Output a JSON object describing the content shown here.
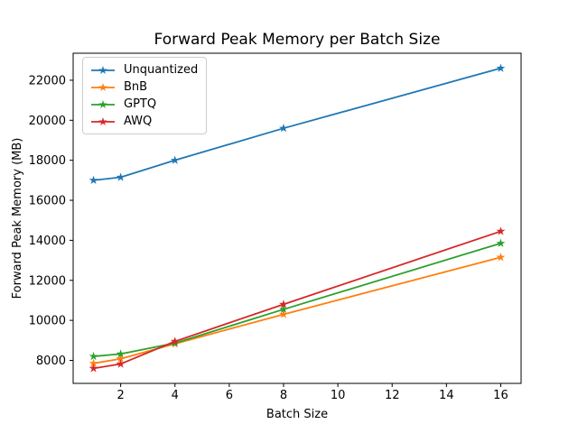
{
  "chart_data": {
    "type": "line",
    "title": "Forward Peak Memory per Batch Size",
    "xlabel": "Batch Size",
    "ylabel": "Forward Peak Memory (MB)",
    "x": [
      1,
      2,
      4,
      8,
      16
    ],
    "series": [
      {
        "name": "Unquantized",
        "color": "#1f77b4",
        "values": [
          17000,
          17150,
          18000,
          19600,
          22600
        ]
      },
      {
        "name": "BnB",
        "color": "#ff7f0e",
        "values": [
          7850,
          8080,
          8830,
          10300,
          13150
        ]
      },
      {
        "name": "GPTQ",
        "color": "#2ca02c",
        "values": [
          8200,
          8320,
          8860,
          10550,
          13850
        ]
      },
      {
        "name": "AWQ",
        "color": "#d62728",
        "values": [
          7600,
          7820,
          8950,
          10800,
          14450
        ]
      }
    ],
    "xticks": [
      2,
      4,
      6,
      8,
      10,
      12,
      14,
      16
    ],
    "yticks": [
      8000,
      10000,
      12000,
      14000,
      16000,
      18000,
      20000,
      22000
    ],
    "xlim": [
      0.25,
      16.75
    ],
    "ylim": [
      6850,
      23350
    ],
    "grid": false,
    "legend_position": "upper left",
    "marker": "star",
    "axes_color": "#000000",
    "background": "#ffffff"
  }
}
